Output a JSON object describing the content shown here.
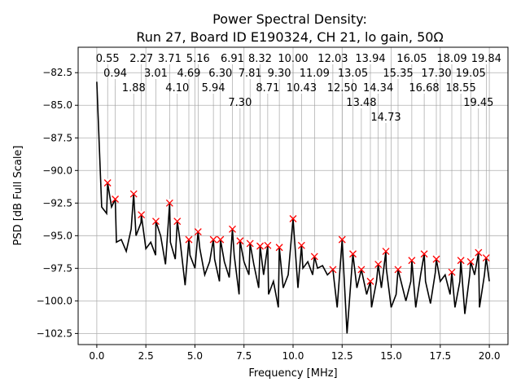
{
  "chart_data": {
    "type": "line",
    "title": [
      "Power Spectral Density:",
      "Run 27, Board ID E190324, CH 21, lo gain, 50Ω"
    ],
    "xlabel": "Frequency [MHz]",
    "ylabel": "PSD [dB Full Scale]",
    "xlim": [
      -0.95,
      20.95
    ],
    "ylim": [
      -103.35,
      -80.55
    ],
    "xticks": [
      0.0,
      2.5,
      5.0,
      7.5,
      10.0,
      12.5,
      15.0,
      17.5,
      20.0
    ],
    "xtick_labels": [
      "0.0",
      "2.5",
      "5.0",
      "7.5",
      "10.0",
      "12.5",
      "15.0",
      "17.5",
      "20.0"
    ],
    "yticks": [
      -82.5,
      -85.0,
      -87.5,
      -90.0,
      -92.5,
      -95.0,
      -97.5,
      -100.0,
      -102.5
    ],
    "ytick_labels": [
      "−82.5",
      "−85.0",
      "−87.5",
      "−90.0",
      "−92.5",
      "−95.0",
      "−97.5",
      "−100.0",
      "−102.5"
    ],
    "grid": true,
    "line_color": "#000000",
    "marker_color": "#ff0000",
    "trace": {
      "x": [
        0,
        0.25,
        0.5,
        0.75,
        1.0,
        1.25,
        1.5,
        1.75,
        2.0,
        2.25,
        2.5,
        2.75,
        3.0,
        3.25,
        3.5,
        3.75,
        4.0,
        4.25,
        4.5,
        4.75,
        5.0,
        5.25,
        5.5,
        5.75,
        6.0,
        6.25,
        6.5,
        6.75,
        7.0,
        7.25,
        7.5,
        7.75,
        8.0,
        8.25,
        8.5,
        8.75,
        9.0,
        9.25,
        9.5,
        9.75,
        10.25,
        10.5,
        10.75,
        11.0,
        11.25,
        11.5,
        11.75,
        12.25,
        12.75,
        13.25,
        13.75,
        14.0,
        14.25,
        14.5,
        14.75,
        15.0,
        15.25,
        15.5,
        15.75,
        16.0,
        16.25,
        16.5,
        16.75,
        17.0,
        17.25,
        17.5,
        17.75,
        18.0,
        18.25,
        18.5,
        18.75,
        19.0,
        19.25,
        19.5,
        19.75,
        20.0
      ],
      "y": [
        -83.2,
        -92.8,
        -93.3,
        -92.8,
        -95.5,
        -95.3,
        -96.2,
        -94.5,
        -95.0,
        -94.0,
        -96.0,
        -95.5,
        -96.5,
        -95.0,
        -97.2,
        -95.5,
        -96.8,
        -95.5,
        -98.8,
        -96.5,
        -97.5,
        -96.0,
        -98.0,
        -97.0,
        -96.8,
        -98.5,
        -97.0,
        -98.2,
        -96.5,
        -99.5,
        -97.0,
        -98.0,
        -97.2,
        -99.0,
        -98.0,
        -99.5,
        -98.5,
        -100.5,
        -99.0,
        -98.0,
        -99.0,
        -97.5,
        -97.0,
        -98.0,
        -97.5,
        -97.3,
        -98.0,
        -100.5,
        -102.5,
        -99.0,
        -99.5,
        -100.5,
        -98.5,
        -99.0,
        -97.5,
        -100.5,
        -99.5,
        -98.5,
        -100.0,
        -98.5,
        -100.5,
        -98.0,
        -98.5,
        -100.2,
        -97.8,
        -98.5,
        -98.0,
        -99.5,
        -100.5,
        -98.5,
        -101.0,
        -98.0,
        -98.0,
        -100.5,
        -98.0,
        -98.5
      ]
    },
    "peaks": {
      "x": [
        0.55,
        0.94,
        1.88,
        2.27,
        3.01,
        3.71,
        4.1,
        4.69,
        5.16,
        5.94,
        6.3,
        6.91,
        7.3,
        7.81,
        8.32,
        8.71,
        9.3,
        10.0,
        10.43,
        11.09,
        12.03,
        12.5,
        13.05,
        13.48,
        13.94,
        14.34,
        14.73,
        15.35,
        16.05,
        16.68,
        17.3,
        18.09,
        18.55,
        19.05,
        19.45,
        19.84
      ],
      "y": [
        -90.95,
        -92.2,
        -91.8,
        -93.4,
        -93.9,
        -92.5,
        -93.9,
        -95.3,
        -94.7,
        -95.3,
        -95.3,
        -94.5,
        -95.4,
        -95.6,
        -95.8,
        -95.75,
        -95.9,
        -93.7,
        -95.75,
        -96.6,
        -97.6,
        -95.3,
        -96.4,
        -97.6,
        -98.5,
        -97.2,
        -96.2,
        -97.6,
        -96.9,
        -96.4,
        -96.8,
        -97.8,
        -96.9,
        -97.0,
        -96.3,
        -96.7
      ],
      "labels": [
        "0.55",
        "0.94",
        "1.88",
        "2.27",
        "3.01",
        "3.71",
        "4.10",
        "4.69",
        "5.16",
        "5.94",
        "6.30",
        "6.91",
        "7.30",
        "7.81",
        "8.32",
        "8.71",
        "9.30",
        "10.00",
        "10.43",
        "11.09",
        "12.03",
        "12.50",
        "13.05",
        "13.48",
        "13.94",
        "14.34",
        "14.73",
        "15.35",
        "16.05",
        "16.68",
        "17.30",
        "18.09",
        "18.55",
        "19.05",
        "19.45",
        "19.84"
      ]
    }
  }
}
